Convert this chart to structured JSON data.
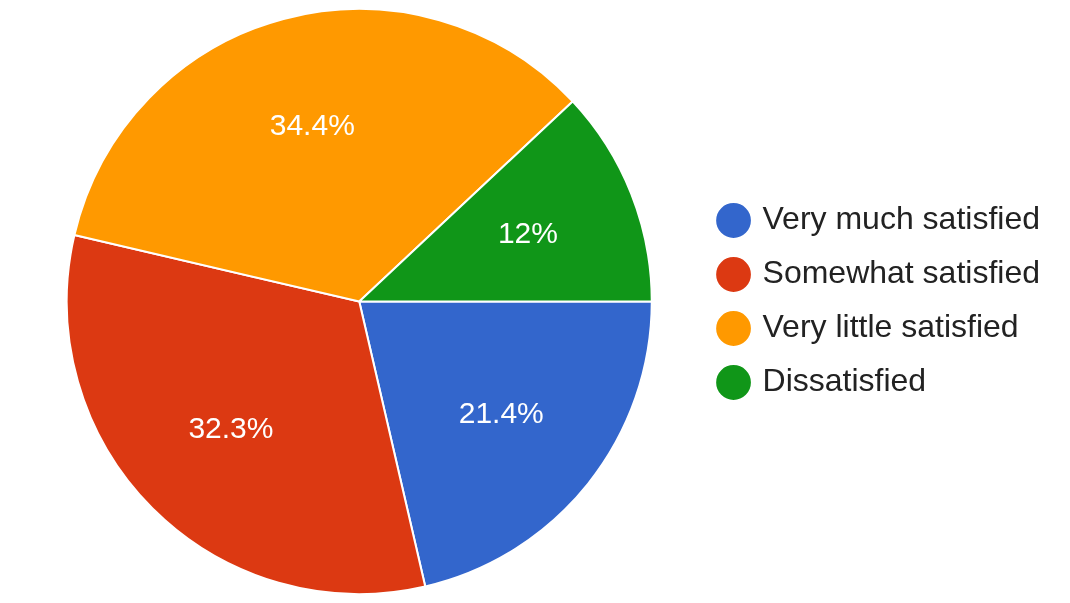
{
  "chart_data": {
    "type": "pie",
    "categories": [
      "Very much satisfied",
      "Somewhat satisfied",
      "Very little satisfied",
      "Dissatisfied"
    ],
    "values": [
      21.4,
      32.3,
      34.4,
      12
    ],
    "value_labels": [
      "21.4%",
      "32.3%",
      "34.4%",
      "12%"
    ],
    "colors": [
      "#3366cc",
      "#dc3912",
      "#ff9900",
      "#109618"
    ],
    "legend": "right"
  }
}
